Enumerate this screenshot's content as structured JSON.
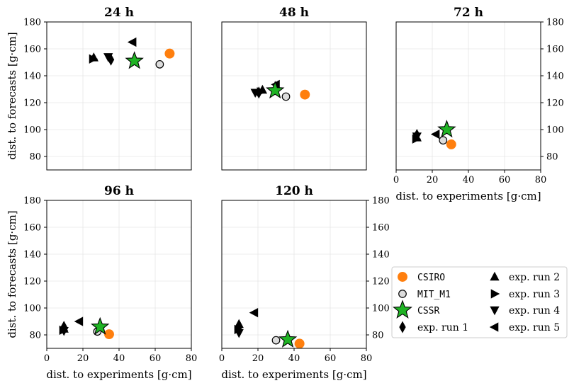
{
  "chart_data": {
    "type": "scatter",
    "colors": {
      "csiro": "#ff7f0e",
      "mit": "#dcdcdc",
      "cssr": "#1fb324",
      "exp": "#000000",
      "grid": "#e6e6e6"
    },
    "xlabel": "dist. to experiments [g·cm]",
    "ylabel": "dist. to forecasts [g·cm]",
    "xlim": [
      0,
      80
    ],
    "ylim": [
      70,
      180
    ],
    "xticks": [
      0,
      20,
      40,
      60,
      80
    ],
    "yticks": [
      80,
      100,
      120,
      140,
      160,
      180
    ],
    "legend": {
      "location": "bottom-right",
      "entries": [
        {
          "label": "CSIRO",
          "marker": "circle-orange"
        },
        {
          "label": "MIT_M1",
          "marker": "circle-light"
        },
        {
          "label": "CSSR",
          "marker": "star-green"
        },
        {
          "label": "exp. run 1",
          "marker": "diamond"
        },
        {
          "label": "exp. run 2",
          "marker": "triangle-up"
        },
        {
          "label": "exp. run 3",
          "marker": "triangle-right"
        },
        {
          "label": "exp. run 4",
          "marker": "triangle-down"
        },
        {
          "label": "exp. run 5",
          "marker": "triangle-left"
        }
      ]
    },
    "panels": [
      {
        "title": "24 h",
        "points": [
          {
            "series": "CSIRO",
            "x": 68,
            "y": 156.5
          },
          {
            "series": "MIT_M1",
            "x": 62.5,
            "y": 148.5
          },
          {
            "series": "CSSR",
            "x": 48.5,
            "y": 151
          },
          {
            "series": "exp. run 1",
            "x": 35.5,
            "y": 152
          },
          {
            "series": "exp. run 2",
            "x": 26,
            "y": 153.5
          },
          {
            "series": "exp. run 3",
            "x": 25.5,
            "y": 152.5
          },
          {
            "series": "exp. run 4",
            "x": 34,
            "y": 154
          },
          {
            "series": "exp. run 5",
            "x": 47.5,
            "y": 165
          }
        ]
      },
      {
        "title": "48 h",
        "points": [
          {
            "series": "CSIRO",
            "x": 46,
            "y": 126
          },
          {
            "series": "MIT_M1",
            "x": 35.5,
            "y": 124.5
          },
          {
            "series": "CSSR",
            "x": 29.5,
            "y": 129
          },
          {
            "series": "exp. run 1",
            "x": 20.5,
            "y": 127.5
          },
          {
            "series": "exp. run 2",
            "x": 22.5,
            "y": 129.5
          },
          {
            "series": "exp. run 3",
            "x": 21.5,
            "y": 128
          },
          {
            "series": "exp. run 4",
            "x": 18.5,
            "y": 127.5
          },
          {
            "series": "exp. run 5",
            "x": 30,
            "y": 133.5
          }
        ]
      },
      {
        "title": "72 h",
        "points": [
          {
            "series": "CSIRO",
            "x": 30.5,
            "y": 89
          },
          {
            "series": "MIT_M1",
            "x": 26,
            "y": 92
          },
          {
            "series": "CSSR",
            "x": 28,
            "y": 100
          },
          {
            "series": "exp. run 1",
            "x": 11.5,
            "y": 96
          },
          {
            "series": "exp. run 2",
            "x": 11.5,
            "y": 94
          },
          {
            "series": "exp. run 3",
            "x": 11,
            "y": 93
          },
          {
            "series": "exp. run 4",
            "x": 11.5,
            "y": 95
          },
          {
            "series": "exp. run 5",
            "x": 22,
            "y": 96.5
          }
        ]
      },
      {
        "title": "96 h",
        "points": [
          {
            "series": "CSIRO",
            "x": 34.5,
            "y": 80.5
          },
          {
            "series": "MIT_M1",
            "x": 28,
            "y": 82.5
          },
          {
            "series": "CSSR",
            "x": 29.5,
            "y": 86
          },
          {
            "series": "exp. run 1",
            "x": 9.5,
            "y": 86
          },
          {
            "series": "exp. run 2",
            "x": 9.5,
            "y": 84.5
          },
          {
            "series": "exp. run 3",
            "x": 9,
            "y": 83.5
          },
          {
            "series": "exp. run 4",
            "x": 9.5,
            "y": 83
          },
          {
            "series": "exp. run 5",
            "x": 18,
            "y": 90
          }
        ]
      },
      {
        "title": "120 h",
        "points": [
          {
            "series": "CSIRO",
            "x": 43,
            "y": 73.5
          },
          {
            "series": "MIT_M1",
            "x": 30,
            "y": 76
          },
          {
            "series": "CSSR",
            "x": 36.5,
            "y": 76.5
          },
          {
            "series": "exp. run 1",
            "x": 9.5,
            "y": 86
          },
          {
            "series": "exp. run 2",
            "x": 9.5,
            "y": 88
          },
          {
            "series": "exp. run 3",
            "x": 9,
            "y": 84
          },
          {
            "series": "exp. run 4",
            "x": 9.5,
            "y": 81.5
          },
          {
            "series": "exp. run 5",
            "x": 18,
            "y": 96.5
          }
        ]
      }
    ]
  }
}
